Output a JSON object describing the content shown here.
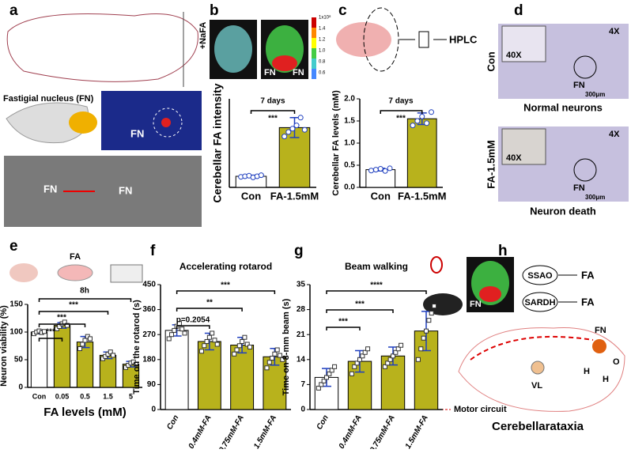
{
  "chart_data": [
    {
      "type": "bar",
      "ylabel": "Cerebellar FA intensity",
      "categories": [
        "Con",
        "FA-1.5mM"
      ],
      "values": [
        1.0,
        5.4
      ],
      "errors": [
        0.1,
        0.9
      ],
      "points": [
        [
          0.95,
          1.0,
          1.05,
          0.9,
          1.0,
          1.1
        ],
        [
          4.6,
          5.0,
          5.3,
          5.6,
          6.3,
          5.2
        ]
      ],
      "colors": [
        "#ffffff",
        "#b8b21c"
      ],
      "ylim": [
        0,
        8
      ],
      "annotations": [
        "7 days",
        "***"
      ]
    },
    {
      "type": "bar",
      "ylabel": "Cerebellar FA levels (mM)",
      "categories": [
        "Con",
        "FA-1.5mM"
      ],
      "values": [
        0.4,
        1.55
      ],
      "errors": [
        0.03,
        0.13
      ],
      "points": [
        [
          0.38,
          0.4,
          0.42,
          0.37,
          0.43
        ],
        [
          1.4,
          1.5,
          1.6,
          1.45,
          1.7
        ]
      ],
      "colors": [
        "#ffffff",
        "#b8b21c"
      ],
      "ylim": [
        0,
        2
      ],
      "yticks": [
        {
          "value": 0,
          "label": "0.0"
        },
        {
          "value": 0.5,
          "label": "0.5"
        },
        {
          "value": 1,
          "label": "1.0"
        },
        {
          "value": 1.5,
          "label": "1.5"
        },
        {
          "value": 2,
          "label": "2.0"
        }
      ],
      "annotations": [
        "7 days",
        "***"
      ]
    },
    {
      "type": "bar",
      "ylabel": "Neuron viability (%)",
      "xlabel": "FA levels (mM)",
      "categories": [
        "Con",
        "0.05",
        "0.5",
        "1.5",
        "5"
      ],
      "values": [
        100,
        112,
        82,
        58,
        42
      ],
      "errors": [
        3,
        5,
        10,
        6,
        5
      ],
      "points": [
        [
          97,
          100,
          102,
          99,
          101
        ],
        [
          106,
          110,
          115,
          118,
          112
        ],
        [
          70,
          78,
          85,
          92,
          88
        ],
        [
          52,
          56,
          60,
          64,
          58
        ],
        [
          36,
          40,
          44,
          46,
          42
        ]
      ],
      "colors": [
        "#ffffff",
        "#b8b21c",
        "#b8b21c",
        "#b8b21c",
        "#b8b21c"
      ],
      "ylim": [
        0,
        150
      ],
      "yticks": [
        0,
        50,
        100,
        150
      ],
      "annotations": [
        "8h",
        "***",
        "***",
        "***"
      ]
    },
    {
      "type": "bar",
      "title": "Accelerating rotarod",
      "ylabel": "Time on the rotarod (s)",
      "categories": [
        "Con",
        "0.4mM-FA",
        "0.75mM-FA",
        "1.5mM-FA"
      ],
      "values": [
        285,
        245,
        232,
        190
      ],
      "errors": [
        20,
        30,
        28,
        30
      ],
      "points": [
        [
          255,
          270,
          285,
          300,
          310,
          290,
          275
        ],
        [
          210,
          230,
          245,
          260,
          275,
          250,
          235
        ],
        [
          200,
          215,
          230,
          245,
          260,
          235,
          225
        ],
        [
          150,
          170,
          185,
          200,
          215,
          195,
          180
        ]
      ],
      "colors": [
        "#ffffff",
        "#b8b21c",
        "#b8b21c",
        "#b8b21c"
      ],
      "ylim": [
        0,
        450
      ],
      "yticks": [
        0,
        90,
        180,
        270,
        360,
        450
      ],
      "annotations": [
        "***",
        "**",
        "p=0.2054"
      ]
    },
    {
      "type": "bar",
      "title": "Beam walking",
      "ylabel": "Time on 8-mm beam (s)",
      "categories": [
        "Con",
        "0.4mM-FA",
        "0.75mM-FA",
        "1.5mM-FA"
      ],
      "values": [
        9,
        13.5,
        15,
        22
      ],
      "errors": [
        2.5,
        3,
        2.5,
        5.5
      ],
      "points": [
        [
          6,
          7,
          8,
          9,
          10,
          11,
          12
        ],
        [
          10,
          12,
          13,
          14,
          15,
          16,
          17
        ],
        [
          12,
          13,
          14,
          15,
          16,
          17,
          18
        ],
        [
          14,
          17,
          20,
          22,
          25,
          27,
          29
        ]
      ],
      "colors": [
        "#ffffff",
        "#b8b21c",
        "#b8b21c",
        "#b8b21c"
      ],
      "ylim": [
        0,
        35
      ],
      "yticks": [
        0,
        7,
        14,
        21,
        28,
        35
      ],
      "annotations": [
        "****",
        "***",
        "***"
      ]
    }
  ],
  "figure": {
    "a": {
      "label": "a",
      "nucleus": "Fastigial nucleus (FN)",
      "fn1": "FN",
      "fn2": "FN",
      "fn3": "FN"
    },
    "b": {
      "label": "b",
      "stain": "+NaFA",
      "fn1": "FN",
      "fn2": "FN",
      "scale": [
        "1x10⁸",
        "1.4",
        "1.2",
        "1.0",
        "0.8",
        "0.6"
      ]
    },
    "c": {
      "label": "c",
      "hplc": "HPLC"
    },
    "d": {
      "label": "d",
      "top_mag": "4X",
      "top_inset": "40X",
      "top_group": "Con",
      "top_fn": "FN",
      "top_scale": "300μm",
      "top_caption": "Normal neurons",
      "bot_mag": "4X",
      "bot_inset": "40X",
      "bot_group": "FA-1.5mM",
      "bot_fn": "FN",
      "bot_scale": "300μm",
      "bot_caption": "Neuron death"
    },
    "e": {
      "label": "e",
      "fa": "FA"
    },
    "f": {
      "label": "f"
    },
    "g": {
      "label": "g"
    },
    "h": {
      "label": "h",
      "fn_img": "FN",
      "ssao": "SSAO",
      "fa1": "FA",
      "sardh": "SARDH",
      "fa2": "FA",
      "fn": "FN",
      "vl": "VL",
      "h1": "H",
      "h2": "H",
      "o": "O",
      "motor": "Motor circuit",
      "caption": "Cerebellarataxia"
    }
  }
}
